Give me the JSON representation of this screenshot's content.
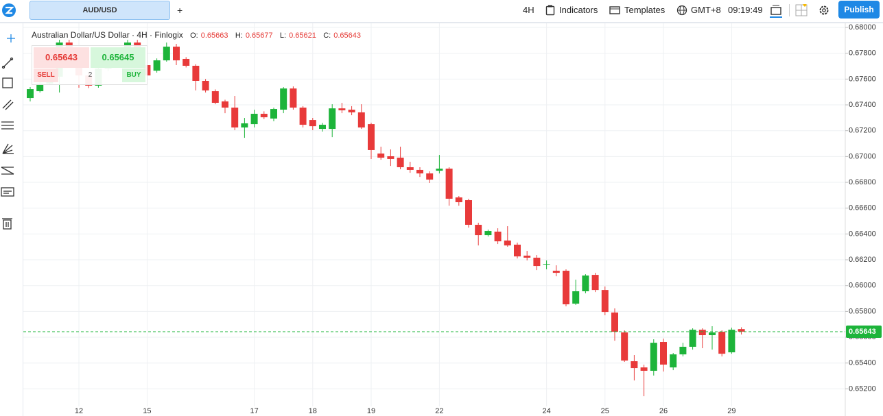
{
  "toolbar": {
    "symbol_tab": "AUD/USD",
    "add_tab": "+",
    "interval": "4H",
    "indicators": "Indicators",
    "templates": "Templates",
    "timezone": "GMT+8",
    "clock": "09:19:49",
    "publish": "Publish"
  },
  "legend": {
    "symbol": "Australian Dollar/US Dollar · 4H · Finlogix",
    "open_label": "O:",
    "high_label": "H:",
    "low_label": "L:",
    "close_label": "C:"
  },
  "trade_panel": {
    "sell_price": "0.65643",
    "buy_price": "0.65645",
    "sell": "SELL",
    "buy": "BUY",
    "quantity": "2"
  },
  "chart_data": {
    "type": "candlestick",
    "up_color": "#1db43a",
    "down_color": "#e83a3a",
    "grid": true,
    "categories": [
      null,
      null,
      null,
      null,
      null,
      "12",
      null,
      null,
      null,
      null,
      null,
      null,
      "15",
      null,
      null,
      null,
      null,
      null,
      null,
      null,
      null,
      null,
      null,
      "17",
      null,
      null,
      null,
      null,
      null,
      "18",
      null,
      null,
      null,
      null,
      null,
      "19",
      null,
      null,
      null,
      null,
      null,
      null,
      "22",
      null,
      null,
      null,
      null,
      null,
      null,
      null,
      null,
      null,
      null,
      "24",
      null,
      null,
      null,
      null,
      null,
      "25",
      null,
      null,
      null,
      null,
      null,
      "26",
      null,
      null,
      null,
      null,
      null,
      null,
      "29",
      null
    ],
    "open": [
      0.67453,
      0.67506,
      0.67565,
      0.67618,
      0.67883,
      0.67735,
      0.67628,
      0.67549,
      0.67681,
      0.67788,
      0.67735,
      0.67883,
      0.67708,
      0.67665,
      0.67745,
      0.67851,
      0.67756,
      0.67703,
      0.67586,
      0.67506,
      0.67427,
      0.67379,
      0.67225,
      0.67251,
      0.67331,
      0.67294,
      0.67363,
      0.67527,
      0.67379,
      0.67283,
      0.67214,
      0.67214,
      0.67373,
      0.67363,
      0.67342,
      0.67251,
      0.67023,
      0.67002,
      0.66991,
      0.66917,
      0.66896,
      0.66869,
      0.6689,
      0.66906,
      0.66683,
      0.66662,
      0.66471,
      0.66391,
      0.66418,
      0.66349,
      0.66317,
      0.66232,
      0.66216,
      0.66163,
      0.66115,
      0.66115,
      0.6586,
      0.65956,
      0.66083,
      0.65966,
      0.65791,
      0.65637,
      0.65414,
      0.65366,
      0.6534,
      0.65563,
      0.65366,
      0.65467,
      0.65526,
      0.65658,
      0.65616,
      0.65642,
      0.65483,
      0.65663
    ],
    "high": [
      0.67538,
      0.67586,
      0.67655,
      0.67904,
      0.67904,
      0.67755,
      0.6765,
      0.677,
      0.6781,
      0.678,
      0.67904,
      0.67904,
      0.67735,
      0.6776,
      0.67883,
      0.67873,
      0.6777,
      0.67715,
      0.676,
      0.6752,
      0.6744,
      0.67469,
      0.67299,
      0.67363,
      0.6735,
      0.67379,
      0.67538,
      0.67543,
      0.6739,
      0.67299,
      0.6726,
      0.67405,
      0.67416,
      0.6739,
      0.67405,
      0.67262,
      0.67076,
      0.67055,
      0.67076,
      0.66959,
      0.66917,
      0.66885,
      0.67012,
      0.66917,
      0.66694,
      0.66673,
      0.66487,
      0.66434,
      0.66444,
      0.6646,
      0.66333,
      0.66269,
      0.66237,
      0.66195,
      0.66157,
      0.66126,
      0.66046,
      0.66088,
      0.66099,
      0.65993,
      0.65823,
      0.65653,
      0.65462,
      0.65387,
      0.65584,
      0.65589,
      0.65478,
      0.65557,
      0.65669,
      0.65669,
      0.65685,
      0.65653,
      0.65674,
      0.65677
    ],
    "low": [
      0.67427,
      0.67496,
      0.67555,
      0.67496,
      0.67708,
      0.67533,
      0.6753,
      0.67533,
      0.6766,
      0.6772,
      0.6772,
      0.6769,
      0.67612,
      0.6765,
      0.67735,
      0.67708,
      0.6769,
      0.67512,
      0.67496,
      0.67405,
      0.67336,
      0.67204,
      0.67145,
      0.67225,
      0.6729,
      0.67273,
      0.67336,
      0.67363,
      0.67225,
      0.67204,
      0.67193,
      0.6715,
      0.67336,
      0.6732,
      0.67214,
      0.66981,
      0.66975,
      0.66927,
      0.66901,
      0.66874,
      0.66842,
      0.66795,
      0.66869,
      0.66619,
      0.66619,
      0.66449,
      0.66311,
      0.6638,
      0.66322,
      0.66301,
      0.6621,
      0.66195,
      0.6612,
      0.66126,
      0.66072,
      0.65839,
      0.6585,
      0.6594,
      0.6595,
      0.6577,
      0.65573,
      0.65409,
      0.65265,
      0.65143,
      0.65303,
      0.65334,
      0.65345,
      0.65451,
      0.65504,
      0.65515,
      0.65504,
      0.65451,
      0.65472,
      0.65621
    ],
    "close": [
      0.67522,
      0.67565,
      0.67618,
      0.67883,
      0.67735,
      0.67628,
      0.67549,
      0.67681,
      0.67788,
      0.67735,
      0.67883,
      0.67708,
      0.67628,
      0.67745,
      0.67851,
      0.67745,
      0.67703,
      0.67586,
      0.67512,
      0.67416,
      0.67379,
      0.67225,
      0.67257,
      0.67331,
      0.67304,
      0.67368,
      0.67527,
      0.67379,
      0.67246,
      0.67235,
      0.67246,
      0.67373,
      0.67358,
      0.67342,
      0.67225,
      0.6705,
      0.66991,
      0.66981,
      0.66917,
      0.66896,
      0.66869,
      0.66821,
      0.66906,
      0.66673,
      0.66646,
      0.66471,
      0.66391,
      0.66423,
      0.66343,
      0.66311,
      0.66226,
      0.66216,
      0.66152,
      0.66168,
      0.66099,
      0.65855,
      0.65956,
      0.66078,
      0.65966,
      0.65796,
      0.65642,
      0.65419,
      0.65361,
      0.6534,
      0.65557,
      0.65388,
      0.65467,
      0.65526,
      0.65658,
      0.65616,
      0.65637,
      0.65472,
      0.65658,
      0.65643
    ],
    "ylim": [
      0.65064,
      0.68032
    ],
    "yticks": [
      {
        "value": 0.68,
        "label": "0.68000"
      },
      {
        "value": 0.678,
        "label": "0.67800"
      },
      {
        "value": 0.676,
        "label": "0.67600"
      },
      {
        "value": 0.674,
        "label": "0.67400"
      },
      {
        "value": 0.672,
        "label": "0.67200"
      },
      {
        "value": 0.67,
        "label": "0.67000"
      },
      {
        "value": 0.668,
        "label": "0.66800"
      },
      {
        "value": 0.666,
        "label": "0.66600"
      },
      {
        "value": 0.664,
        "label": "0.66400"
      },
      {
        "value": 0.662,
        "label": "0.66200"
      },
      {
        "value": 0.66,
        "label": "0.66000"
      },
      {
        "value": 0.658,
        "label": "0.65800"
      },
      {
        "value": 0.656,
        "label": "0.65600"
      },
      {
        "value": 0.654,
        "label": "0.65400"
      },
      {
        "value": 0.652,
        "label": "0.65200"
      }
    ]
  }
}
